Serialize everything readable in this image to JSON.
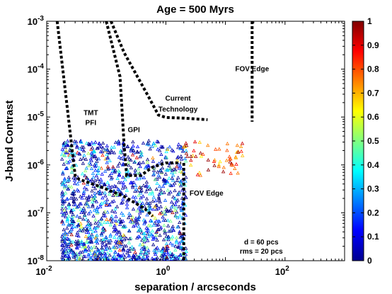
{
  "chart_data": {
    "type": "scatter",
    "title": "Age = 500 Myrs",
    "xlabel": "separation / arcseconds",
    "ylabel": "J-band Contrast",
    "x_scale": "log",
    "y_scale": "log",
    "xlim": [
      0.01,
      1000
    ],
    "ylim": [
      1e-08,
      0.001
    ],
    "x_ticks": [
      {
        "base": "10",
        "exp": "-2",
        "value": 0.01
      },
      {
        "base": "10",
        "exp": "0",
        "value": 1
      },
      {
        "base": "10",
        "exp": "2",
        "value": 100
      }
    ],
    "y_ticks": [
      {
        "base": "10",
        "exp": "-3",
        "value": 0.001
      },
      {
        "base": "10",
        "exp": "-4",
        "value": 0.0001
      },
      {
        "base": "10",
        "exp": "-5",
        "value": 1e-05
      },
      {
        "base": "10",
        "exp": "-6",
        "value": 1e-06
      },
      {
        "base": "10",
        "exp": "-7",
        "value": 1e-07
      },
      {
        "base": "10",
        "exp": "-8",
        "value": 1e-08
      }
    ],
    "grid": false,
    "colorbar": {
      "range": [
        0,
        1
      ],
      "ticks": [
        "0",
        "0.1",
        "0.2",
        "0.3",
        "0.4",
        "0.5",
        "0.6",
        "0.7",
        "0.8",
        "0.9",
        "1"
      ],
      "colormap": "jet"
    },
    "curves": [
      {
        "label": "TMT PFI",
        "points": [
          [
            0.015,
            0.001
          ],
          [
            0.03,
            6e-07
          ],
          [
            0.035,
            5e-07
          ],
          [
            0.08,
            3.5e-07
          ],
          [
            0.2,
            2.2e-07
          ],
          [
            0.45,
            1.2e-07
          ],
          [
            0.6,
            8.5e-08
          ]
        ]
      },
      {
        "label": "GPI",
        "points": [
          [
            0.1,
            0.001
          ],
          [
            0.17,
            7e-05
          ],
          [
            0.2,
            2.5e-06
          ],
          [
            0.22,
            6e-07
          ],
          [
            0.38,
            6e-07
          ],
          [
            0.6,
            9e-07
          ],
          [
            1.0,
            1.1e-06
          ],
          [
            1.8,
            1.1e-06
          ]
        ]
      },
      {
        "label": "Current Technology",
        "points": [
          [
            0.12,
            0.001
          ],
          [
            0.2,
            0.00022
          ],
          [
            0.5,
            2.8e-05
          ],
          [
            0.75,
            1.1e-05
          ],
          [
            1.0,
            9.8e-06
          ],
          [
            2.0,
            9.5e-06
          ],
          [
            5.0,
            8.8e-06
          ]
        ]
      },
      {
        "label": "FOV Edge",
        "points": [
          [
            2.0,
            1.1e-06
          ],
          [
            2.0,
            1e-08
          ]
        ]
      },
      {
        "label": "FOV Edge",
        "points": [
          [
            28,
            0.001
          ],
          [
            28,
            8e-06
          ]
        ]
      }
    ],
    "annotations": [
      {
        "text": "FOV Edge",
        "x": 28,
        "y": 9e-05
      },
      {
        "text": "Current",
        "x": 1.6,
        "y": 2.2e-05
      },
      {
        "text": "Technology",
        "x": 1.6,
        "y": 1.3e-05
      },
      {
        "text": "TMT",
        "x": 0.055,
        "y": 1.1e-05
      },
      {
        "text": "PFI",
        "x": 0.055,
        "y": 6.8e-06
      },
      {
        "text": "GPI",
        "x": 0.29,
        "y": 4.8e-06
      },
      {
        "text": "FOV Edge",
        "x": 4.8,
        "y": 2.3e-07
      },
      {
        "text": "d = 60 pcs",
        "x": 40,
        "y": 2.2e-08
      },
      {
        "text": "rms = 20 pcs",
        "x": 40,
        "y": 1.4e-08
      }
    ],
    "scatter": {
      "marker": "triangle",
      "description": "dense cloud of simulated planets, mostly low colour values (blue), a few higher values (red) at larger separation",
      "x_range": [
        0.02,
        20
      ],
      "y_range": [
        1e-08,
        4e-06
      ]
    }
  }
}
